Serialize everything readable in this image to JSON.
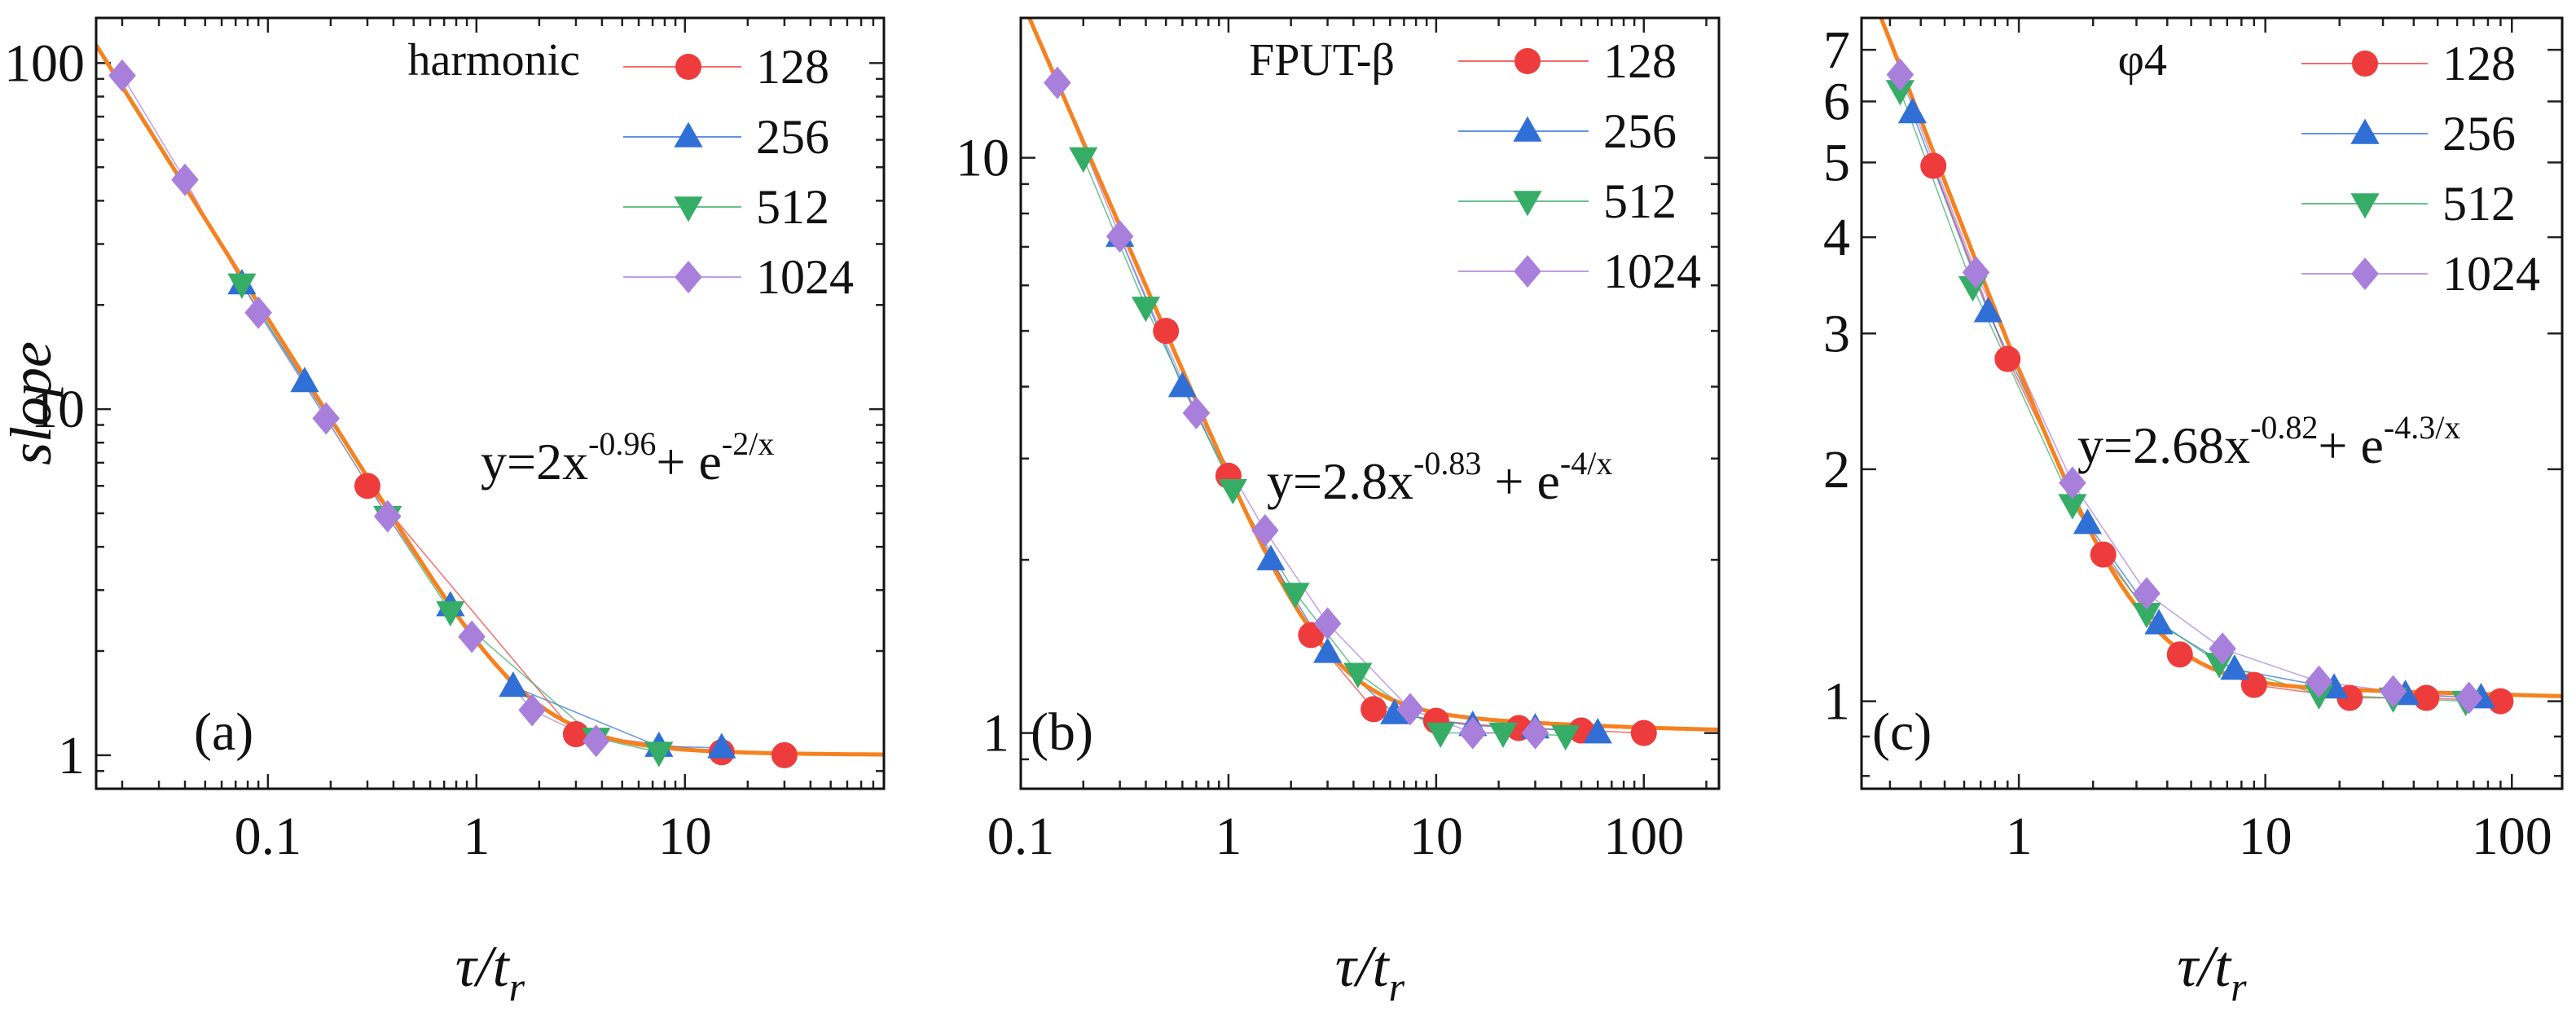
{
  "colors": {
    "fit": "#f5811f",
    "128": "#ee3b3b",
    "256": "#2f6fd6",
    "512": "#36ad66",
    "1024": "#a97fdc"
  },
  "chart_data": [
    {
      "type": "line",
      "panel_label": "(a)",
      "model_name": "harmonic",
      "xlabel": "τ/t_r",
      "ylabel": "slope",
      "xscale": "log",
      "yscale": "log",
      "xlim": [
        0.015,
        90
      ],
      "ylim": [
        0.8,
        135
      ],
      "xticks": [
        {
          "v": 0.1,
          "label": "0.1"
        },
        {
          "v": 1,
          "label": "1"
        },
        {
          "v": 10,
          "label": "10"
        }
      ],
      "yticks": [
        {
          "v": 1,
          "label": "1"
        },
        {
          "v": 10,
          "label": "10"
        },
        {
          "v": 100,
          "label": "100"
        }
      ],
      "fit": {
        "a": 2,
        "b": 0.96,
        "c": 2,
        "eq_base": "y=2x",
        "eq_exp1": "-0.96",
        "eq_mid": "+ e",
        "eq_exp2": "-2/x"
      },
      "legend": [
        "128",
        "256",
        "512",
        "1024"
      ],
      "series": [
        {
          "name": "128",
          "marker": "circle",
          "x": [
            0.3,
            3.0,
            15.0,
            30.0
          ],
          "y": [
            6.0,
            1.15,
            1.02,
            1.0
          ]
        },
        {
          "name": "256",
          "marker": "triangle-up",
          "x": [
            0.075,
            0.15,
            0.75,
            1.5,
            7.5,
            15.0
          ],
          "y": [
            23.0,
            12.0,
            2.7,
            1.58,
            1.06,
            1.05
          ]
        },
        {
          "name": "512",
          "marker": "triangle-down",
          "x": [
            0.075,
            0.375,
            0.75,
            3.75,
            7.5
          ],
          "y": [
            23.0,
            4.9,
            2.6,
            1.12,
            1.02
          ]
        },
        {
          "name": "1024",
          "marker": "diamond",
          "x": [
            0.02,
            0.04,
            0.09,
            0.19,
            0.375,
            0.95,
            1.85,
            3.75
          ],
          "y": [
            92.0,
            46.0,
            19.0,
            9.4,
            4.9,
            2.2,
            1.35,
            1.1
          ]
        }
      ]
    },
    {
      "type": "line",
      "panel_label": "(b)",
      "model_name": "FPUT-β",
      "xlabel": "τ/t_r",
      "ylabel": "",
      "xscale": "log",
      "yscale": "log",
      "xlim": [
        0.1,
        230
      ],
      "ylim": [
        0.8,
        17.5
      ],
      "xticks": [
        {
          "v": 0.1,
          "label": "0.1"
        },
        {
          "v": 1,
          "label": "1"
        },
        {
          "v": 10,
          "label": "10"
        },
        {
          "v": 100,
          "label": "100"
        }
      ],
      "yticks": [
        {
          "v": 1,
          "label": "1"
        },
        {
          "v": 10,
          "label": "10"
        }
      ],
      "fit": {
        "a": 2.8,
        "b": 0.83,
        "c": 4,
        "eq_base": "y=2.8x",
        "eq_exp1": "-0.83",
        "eq_mid": " + e",
        "eq_exp2": "-4/x"
      },
      "legend": [
        "128",
        "256",
        "512",
        "1024"
      ],
      "series": [
        {
          "name": "128",
          "marker": "circle",
          "x": [
            0.5,
            1.0,
            2.5,
            5.0,
            10.0,
            25.0,
            50.0,
            100.0
          ],
          "y": [
            5.0,
            2.8,
            1.48,
            1.1,
            1.05,
            1.02,
            1.01,
            1.0
          ]
        },
        {
          "name": "256",
          "marker": "triangle-up",
          "x": [
            0.3,
            0.6,
            1.6,
            3.0,
            6.3,
            15.0,
            30.0,
            60.0
          ],
          "y": [
            7.3,
            4.0,
            2.0,
            1.38,
            1.08,
            1.03,
            1.02,
            1.0
          ]
        },
        {
          "name": "512",
          "marker": "triangle-down",
          "x": [
            0.2,
            0.4,
            1.05,
            2.1,
            4.2,
            10.5,
            21.0,
            42.0
          ],
          "y": [
            10.0,
            5.5,
            2.65,
            1.75,
            1.27,
            1.0,
            1.0,
            0.99
          ]
        },
        {
          "name": "1024",
          "marker": "diamond",
          "x": [
            0.15,
            0.3,
            0.7,
            1.5,
            3.0,
            7.5,
            15.0,
            30.0
          ],
          "y": [
            13.5,
            7.3,
            3.6,
            2.25,
            1.55,
            1.1,
            1.0,
            1.0
          ]
        }
      ]
    },
    {
      "type": "line",
      "panel_label": "(c)",
      "model_name": "φ4",
      "xlabel": "τ/t_r",
      "ylabel": "",
      "xscale": "log",
      "yscale": "log",
      "xlim": [
        0.23,
        160
      ],
      "ylim": [
        0.77,
        7.7
      ],
      "xticks": [
        {
          "v": 1,
          "label": "1"
        },
        {
          "v": 10,
          "label": "10"
        },
        {
          "v": 100,
          "label": "100"
        }
      ],
      "yticks": [
        {
          "v": 1,
          "label": "1"
        },
        {
          "v": 2,
          "label": "2"
        },
        {
          "v": 3,
          "label": "3"
        },
        {
          "v": 4,
          "label": "4"
        },
        {
          "v": 5,
          "label": "5"
        },
        {
          "v": 6,
          "label": "6"
        },
        {
          "v": 7,
          "label": "7"
        }
      ],
      "fit": {
        "a": 2.68,
        "b": 0.82,
        "c": 4.3,
        "eq_base": "y=2.68x",
        "eq_exp1": "-0.82",
        "eq_mid": "+ e",
        "eq_exp2": "-4.3/x"
      },
      "legend": [
        "128",
        "256",
        "512",
        "1024"
      ],
      "series": [
        {
          "name": "128",
          "marker": "circle",
          "x": [
            0.45,
            0.9,
            2.2,
            4.5,
            9.0,
            22.0,
            45.0,
            90.0
          ],
          "y": [
            4.95,
            2.78,
            1.55,
            1.15,
            1.05,
            1.01,
            1.01,
            1.0
          ]
        },
        {
          "name": "256",
          "marker": "triangle-up",
          "x": [
            0.37,
            0.75,
            1.9,
            3.7,
            7.5,
            19.0,
            37.0,
            75.0
          ],
          "y": [
            5.8,
            3.2,
            1.7,
            1.26,
            1.1,
            1.04,
            1.02,
            1.01
          ]
        },
        {
          "name": "512",
          "marker": "triangle-down",
          "x": [
            0.33,
            0.65,
            1.65,
            3.3,
            6.5,
            16.5,
            33.0,
            65.0
          ],
          "y": [
            6.2,
            3.45,
            1.8,
            1.3,
            1.12,
            1.02,
            1.01,
            1.0
          ]
        },
        {
          "name": "1024",
          "marker": "diamond",
          "x": [
            0.33,
            0.67,
            1.65,
            3.3,
            6.7,
            16.5,
            33.0,
            67.0
          ],
          "y": [
            6.5,
            3.6,
            1.92,
            1.38,
            1.17,
            1.06,
            1.03,
            1.01
          ]
        }
      ]
    }
  ]
}
